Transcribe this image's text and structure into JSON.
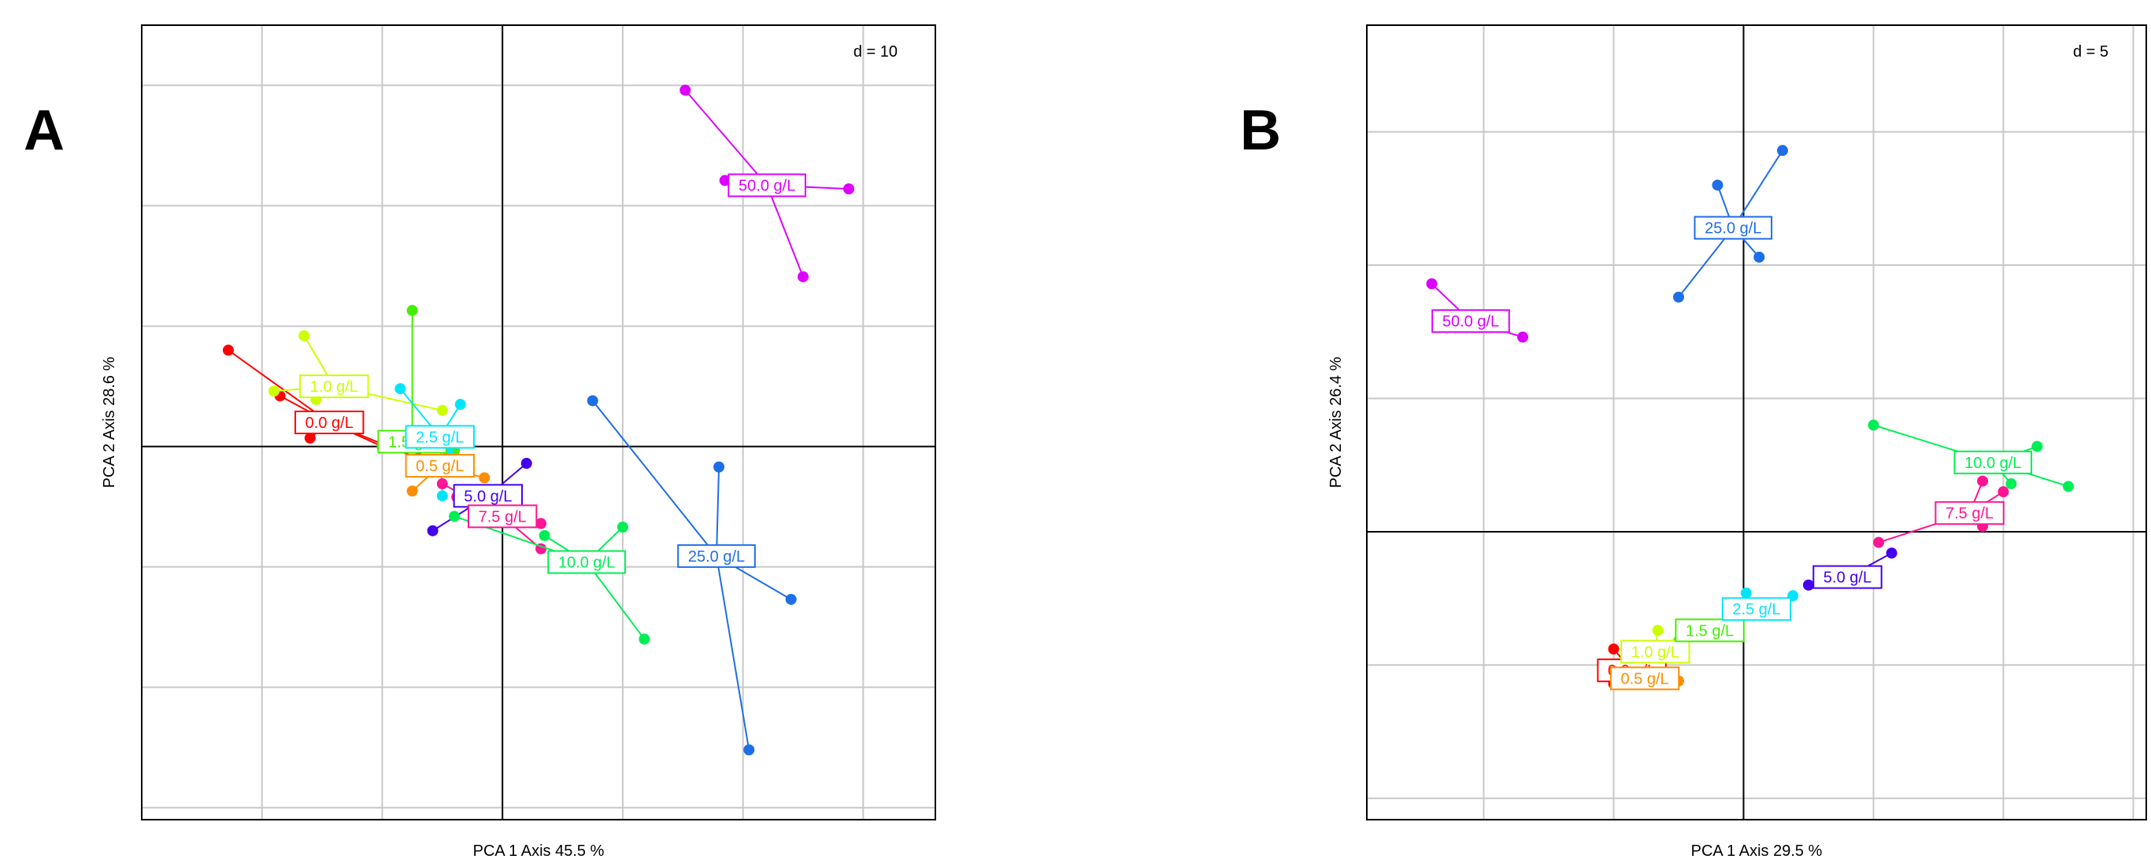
{
  "panel_labels": [
    "A",
    "B"
  ],
  "chart_data": [
    {
      "type": "scatter",
      "panel": "A",
      "xlabel": "PCA 1 Axis 45.5 %",
      "ylabel": "PCA 2 Axis 28.6 %",
      "scale_label": "d = 10",
      "grid": true,
      "xlim": [
        -30,
        36
      ],
      "ylim": [
        -31,
        35
      ],
      "grid_step": 10,
      "groups": [
        {
          "label": "0.0 g/L",
          "color": "#ff0000",
          "center": [
            -14.4,
            2.0
          ],
          "points": [
            [
              -22.8,
              8.0
            ],
            [
              -18.5,
              4.2
            ],
            [
              -16.0,
              0.7
            ],
            [
              -10.0,
              0.0
            ],
            [
              -7.0,
              -1.0
            ]
          ]
        },
        {
          "label": "0.5 g/L",
          "color": "#ff8c00",
          "center": [
            -5.2,
            -1.6
          ],
          "points": [
            [
              -7.5,
              -3.7
            ],
            [
              -5.0,
              -2.0
            ],
            [
              -1.5,
              -2.6
            ],
            [
              -4.0,
              -0.8
            ]
          ]
        },
        {
          "label": "1.0 g/L",
          "color": "#ccff00",
          "center": [
            -14.0,
            5.0
          ],
          "points": [
            [
              -16.5,
              9.2
            ],
            [
              -19.0,
              4.6
            ],
            [
              -15.5,
              3.9
            ],
            [
              -5.0,
              3.0
            ]
          ]
        },
        {
          "label": "1.5 g/L",
          "color": "#44ee00",
          "center": [
            -7.5,
            0.4
          ],
          "points": [
            [
              -7.5,
              11.3
            ],
            [
              -10.0,
              0.0
            ],
            [
              -4.0,
              -0.3
            ]
          ]
        },
        {
          "label": "2.5 g/L",
          "color": "#00e5ff",
          "center": [
            -5.2,
            0.8
          ],
          "points": [
            [
              -8.5,
              4.8
            ],
            [
              -3.5,
              3.5
            ],
            [
              -5.0,
              -4.1
            ],
            [
              -4.5,
              -0.6
            ]
          ]
        },
        {
          "label": "5.0 g/L",
          "color": "#4400ee",
          "center": [
            -1.2,
            -4.1
          ],
          "points": [
            [
              2.0,
              -1.4
            ],
            [
              -5.8,
              -7.0
            ],
            [
              -3.5,
              -3.8
            ]
          ]
        },
        {
          "label": "7.5 g/L",
          "color": "#ff1493",
          "center": [
            0.0,
            -5.8
          ],
          "points": [
            [
              -5.0,
              -3.1
            ],
            [
              3.2,
              -6.4
            ],
            [
              3.2,
              -8.5
            ],
            [
              -3.8,
              -4.2
            ]
          ]
        },
        {
          "label": "10.0 g/L",
          "color": "#00ee55",
          "center": [
            7.0,
            -9.6
          ],
          "points": [
            [
              10.0,
              -6.7
            ],
            [
              11.8,
              -16.0
            ],
            [
              3.5,
              -7.4
            ],
            [
              -4.0,
              -5.8
            ]
          ]
        },
        {
          "label": "25.0 g/L",
          "color": "#1e6ee8",
          "center": [
            17.8,
            -9.1
          ],
          "points": [
            [
              7.5,
              3.8
            ],
            [
              18.0,
              -1.7
            ],
            [
              24.0,
              -12.7
            ],
            [
              20.5,
              -25.2
            ]
          ]
        },
        {
          "label": "50.0 g/L",
          "color": "#dd00ff",
          "center": [
            22.0,
            21.7
          ],
          "points": [
            [
              15.2,
              29.6
            ],
            [
              18.5,
              22.1
            ],
            [
              28.8,
              21.4
            ],
            [
              25.0,
              14.1
            ]
          ]
        }
      ]
    },
    {
      "type": "scatter",
      "panel": "B",
      "xlabel": "PCA 1 Axis 29.5 %",
      "ylabel": "PCA 2 Axis 26.4 %",
      "scale_label": "d = 5",
      "grid": true,
      "xlim": [
        -14.5,
        15.5
      ],
      "ylim": [
        -10.8,
        19
      ],
      "grid_step": 5,
      "groups": [
        {
          "label": "0.0 g/L",
          "color": "#ff0000",
          "center": [
            -4.3,
            -5.2
          ],
          "points": [
            [
              -5.0,
              -5.7
            ],
            [
              -5.0,
              -4.4
            ]
          ]
        },
        {
          "label": "0.5 g/L",
          "color": "#ff8c00",
          "center": [
            -3.8,
            -5.5
          ],
          "points": [
            [
              -4.8,
              -5.7
            ],
            [
              -2.5,
              -5.6
            ]
          ]
        },
        {
          "label": "1.0 g/L",
          "color": "#ccff00",
          "center": [
            -3.4,
            -4.5
          ],
          "points": [
            [
              -3.3,
              -3.7
            ],
            [
              -4.0,
              -5.0
            ]
          ]
        },
        {
          "label": "1.5 g/L",
          "color": "#44ee00",
          "center": [
            -1.3,
            -3.7
          ],
          "points": [
            [
              -2.5,
              -4.1
            ],
            [
              -0.5,
              -3.3
            ]
          ]
        },
        {
          "label": "2.5 g/L",
          "color": "#00e5ff",
          "center": [
            0.5,
            -2.9
          ],
          "points": [
            [
              0.1,
              -2.3
            ],
            [
              1.9,
              -2.4
            ]
          ]
        },
        {
          "label": "5.0 g/L",
          "color": "#4400ee",
          "center": [
            4.0,
            -1.7
          ],
          "points": [
            [
              2.5,
              -2.0
            ],
            [
              5.7,
              -0.8
            ]
          ]
        },
        {
          "label": "7.5 g/L",
          "color": "#ff1493",
          "center": [
            8.7,
            0.7
          ],
          "points": [
            [
              5.2,
              -0.4
            ],
            [
              9.2,
              1.9
            ],
            [
              9.2,
              0.2
            ],
            [
              10.0,
              1.5
            ]
          ]
        },
        {
          "label": "10.0 g/L",
          "color": "#00ee55",
          "center": [
            9.6,
            2.6
          ],
          "points": [
            [
              5.0,
              4.0
            ],
            [
              11.3,
              3.2
            ],
            [
              12.5,
              1.7
            ],
            [
              10.3,
              1.8
            ]
          ]
        },
        {
          "label": "25.0 g/L",
          "color": "#1e6ee8",
          "center": [
            -0.4,
            11.4
          ],
          "points": [
            [
              1.5,
              14.3
            ],
            [
              -1.0,
              13.0
            ],
            [
              -2.5,
              8.8
            ],
            [
              0.6,
              10.3
            ]
          ]
        },
        {
          "label": "50.0 g/L",
          "color": "#dd00ff",
          "center": [
            -10.5,
            7.9
          ],
          "points": [
            [
              -12.0,
              9.3
            ],
            [
              -8.5,
              7.3
            ],
            [
              -10.5,
              7.7
            ]
          ]
        }
      ]
    }
  ]
}
